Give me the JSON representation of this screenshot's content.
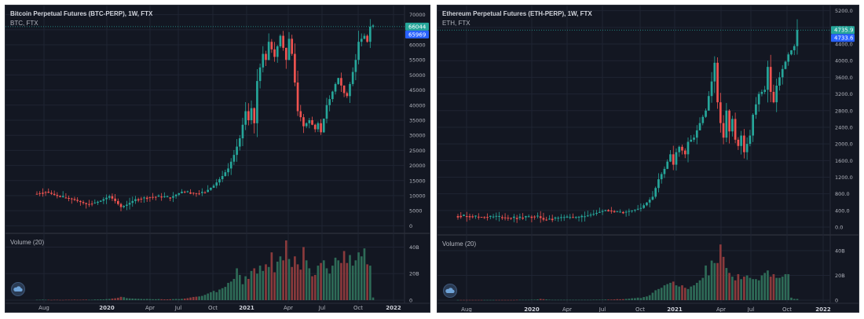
{
  "panels": [
    {
      "title": "Bitcoin Perpetual Futures (BTC-PERP), 1W, FTX",
      "subtitle": "BTC, FTX",
      "volume_label": "Volume (20)",
      "last_price_label": "66044",
      "secondary_price_label": "65969",
      "last_price_color": "#26a69a",
      "secondary_price_color": "#2962ff"
    },
    {
      "title": "Ethereum Perpetual Futures (ETH-PERP), 1W, FTX",
      "subtitle": "ETH, FTX",
      "volume_label": "Volume (20)",
      "last_price_label": "4735.9",
      "secondary_price_label": "4733.6",
      "last_price_color": "#26a69a",
      "secondary_price_color": "#2962ff"
    }
  ],
  "colors": {
    "up": "#26a69a",
    "down": "#ef5350",
    "volume_up": "#2e6b57",
    "volume_down": "#8a3a3c",
    "grid": "#1f2433",
    "background": "#131722"
  },
  "chart_data": [
    {
      "type": "candlestick",
      "title": "Bitcoin Perpetual Futures (BTC-PERP), 1W, FTX",
      "x_tick_labels": [
        "Aug",
        "2020",
        "Apr",
        "Jul",
        "Oct",
        "2021",
        "Apr",
        "Jul",
        "Oct",
        "2022"
      ],
      "x_tick_bold": [
        "2020",
        "2021",
        "2022"
      ],
      "y_tick_labels": [
        "0",
        "5000",
        "10000",
        "15000",
        "20000",
        "25000",
        "30000",
        "35000",
        "40000",
        "45000",
        "50000",
        "55000",
        "60000",
        "65000",
        "70000"
      ],
      "ylim": [
        -2000,
        72000
      ],
      "volume_tick_labels": [
        "0",
        "20B",
        "40B"
      ],
      "volume_ylim": [
        0,
        45
      ],
      "volume_unit": "B",
      "last_price": 66044,
      "secondary_price": 65969,
      "price_path": [
        [
          0,
          10800
        ],
        [
          3,
          11300
        ],
        [
          8,
          9500
        ],
        [
          12,
          8900
        ],
        [
          17,
          7200
        ],
        [
          20,
          7600
        ],
        [
          22,
          8300
        ],
        [
          25,
          9800
        ],
        [
          27,
          8200
        ],
        [
          29,
          6200
        ],
        [
          31,
          7000
        ],
        [
          34,
          8800
        ],
        [
          38,
          9500
        ],
        [
          42,
          9700
        ],
        [
          46,
          9300
        ],
        [
          50,
          11300
        ],
        [
          55,
          10700
        ],
        [
          58,
          11200
        ],
        [
          61,
          13300
        ],
        [
          64,
          16500
        ],
        [
          66,
          19000
        ],
        [
          68,
          23500
        ],
        [
          70,
          29000
        ],
        [
          72,
          38000
        ],
        [
          73,
          35000
        ],
        [
          74,
          39000
        ],
        [
          75,
          34000
        ],
        [
          76,
          48000
        ],
        [
          78,
          57000
        ],
        [
          79,
          55000
        ],
        [
          80,
          61000
        ],
        [
          82,
          56000
        ],
        [
          84,
          63000
        ],
        [
          86,
          55000
        ],
        [
          87,
          62000
        ],
        [
          88,
          57000
        ],
        [
          90,
          38000
        ],
        [
          91,
          36000
        ],
        [
          92,
          33000
        ],
        [
          94,
          35000
        ],
        [
          96,
          32000
        ],
        [
          97,
          34000
        ],
        [
          98,
          31000
        ],
        [
          100,
          40000
        ],
        [
          101,
          42000
        ],
        [
          103,
          47000
        ],
        [
          104,
          49000
        ],
        [
          106,
          44000
        ],
        [
          107,
          43000
        ],
        [
          108,
          47000
        ],
        [
          110,
          55000
        ],
        [
          111,
          61000
        ],
        [
          113,
          63000
        ],
        [
          114,
          61000
        ],
        [
          115,
          66000
        ]
      ],
      "volume_values": [
        0.3,
        0.3,
        0.4,
        0.3,
        0.3,
        0.2,
        0.3,
        0.3,
        0.2,
        0.2,
        0.3,
        0.3,
        0.3,
        0.4,
        0.3,
        0.3,
        0.4,
        0.4,
        0.3,
        0.3,
        0.5,
        0.5,
        0.6,
        0.6,
        0.8,
        0.9,
        1.2,
        1.4,
        1.8,
        2.5,
        2.2,
        1.5,
        1.3,
        1.2,
        1.1,
        1.0,
        0.9,
        0.8,
        0.9,
        0.8,
        0.7,
        0.7,
        0.8,
        0.7,
        0.6,
        0.6,
        0.7,
        0.8,
        0.9,
        0.8,
        1.0,
        1.2,
        1.5,
        2.0,
        2.4,
        2.6,
        2.8,
        3.2,
        4,
        5,
        6,
        7,
        6,
        8,
        9,
        10,
        13,
        14,
        16,
        24,
        19,
        12,
        18,
        16,
        22,
        24,
        20,
        26,
        22,
        27,
        25,
        36,
        21,
        29,
        33,
        30,
        45,
        31,
        25,
        33,
        27,
        23,
        40,
        30,
        24,
        18,
        19,
        26,
        28,
        30,
        24,
        20,
        26,
        32,
        30,
        28,
        37,
        28,
        34,
        26,
        30,
        36,
        33,
        39,
        27,
        26,
        2
      ]
    },
    {
      "type": "candlestick",
      "title": "Ethereum Perpetual Futures (ETH-PERP), 1W, FTX",
      "x_tick_labels": [
        "Aug",
        "2020",
        "Apr",
        "Jul",
        "Oct",
        "2021",
        "Apr",
        "Jul",
        "Oct",
        "2022"
      ],
      "x_tick_bold": [
        "2020",
        "2021",
        "2022"
      ],
      "y_tick_labels": [
        "0.0",
        "400.0",
        "800.0",
        "1200.0",
        "1600.0",
        "2000.0",
        "2400.0",
        "2800.0",
        "3200.0",
        "3600.0",
        "4000.0",
        "4400.0",
        "4800.0",
        "5200.0"
      ],
      "ylim": [
        -150,
        5250
      ],
      "volume_tick_labels": [
        "0",
        "20B",
        "40B"
      ],
      "volume_ylim": [
        0,
        47
      ],
      "volume_unit": "B",
      "last_price": 4735.9,
      "secondary_price": 4733.6,
      "price_path": [
        [
          0,
          270
        ],
        [
          4,
          260
        ],
        [
          8,
          240
        ],
        [
          12,
          255
        ],
        [
          16,
          225
        ],
        [
          20,
          220
        ],
        [
          24,
          250
        ],
        [
          27,
          260
        ],
        [
          29,
          180
        ],
        [
          31,
          200
        ],
        [
          34,
          220
        ],
        [
          38,
          240
        ],
        [
          42,
          240
        ],
        [
          46,
          320
        ],
        [
          50,
          410
        ],
        [
          53,
          370
        ],
        [
          56,
          360
        ],
        [
          59,
          400
        ],
        [
          62,
          460
        ],
        [
          64,
          590
        ],
        [
          66,
          730
        ],
        [
          68,
          1150
        ],
        [
          70,
          1400
        ],
        [
          72,
          1750
        ],
        [
          73,
          1500
        ],
        [
          74,
          1800
        ],
        [
          75,
          1930
        ],
        [
          77,
          1750
        ],
        [
          78,
          2050
        ],
        [
          80,
          2150
        ],
        [
          82,
          2500
        ],
        [
          84,
          2800
        ],
        [
          86,
          3500
        ],
        [
          87,
          3950
        ],
        [
          88,
          3000
        ],
        [
          89,
          2500
        ],
        [
          90,
          2150
        ],
        [
          91,
          2800
        ],
        [
          92,
          2300
        ],
        [
          93,
          2600
        ],
        [
          94,
          2100
        ],
        [
          95,
          1950
        ],
        [
          96,
          2200
        ],
        [
          97,
          1800
        ],
        [
          99,
          2200
        ],
        [
          100,
          2700
        ],
        [
          102,
          3200
        ],
        [
          104,
          3300
        ],
        [
          105,
          3850
        ],
        [
          106,
          3250
        ],
        [
          107,
          3000
        ],
        [
          108,
          3400
        ],
        [
          110,
          3800
        ],
        [
          112,
          4150
        ],
        [
          114,
          4350
        ],
        [
          115,
          4735.9
        ]
      ],
      "volume_values": [
        0.2,
        0.2,
        0.2,
        0.2,
        0.2,
        0.2,
        0.2,
        0.2,
        0.2,
        0.2,
        0.2,
        0.2,
        0.2,
        0.2,
        0.2,
        0.2,
        0.2,
        0.2,
        0.2,
        0.2,
        0.3,
        0.3,
        0.3,
        0.3,
        0.3,
        0.4,
        0.4,
        0.6,
        1.0,
        0.8,
        0.6,
        0.4,
        0.3,
        0.3,
        0.3,
        0.3,
        0.3,
        0.3,
        0.3,
        0.3,
        0.3,
        0.3,
        0.3,
        0.3,
        0.3,
        0.3,
        0.4,
        0.4,
        0.4,
        0.4,
        0.5,
        0.5,
        0.5,
        0.6,
        0.8,
        0.7,
        0.8,
        1.0,
        1.2,
        1.5,
        1.6,
        2.0,
        1.7,
        2.5,
        3,
        4,
        6,
        8,
        9,
        10,
        12,
        13,
        14,
        15,
        12,
        11,
        12,
        10,
        9,
        11,
        12,
        14,
        16,
        18,
        28,
        20,
        32,
        30,
        30,
        45,
        35,
        26,
        22,
        19,
        16,
        21,
        17,
        19,
        20,
        18,
        17,
        17,
        16,
        20,
        22,
        24,
        19,
        21,
        18,
        18,
        19,
        21,
        21,
        2,
        1,
        1
      ]
    }
  ]
}
